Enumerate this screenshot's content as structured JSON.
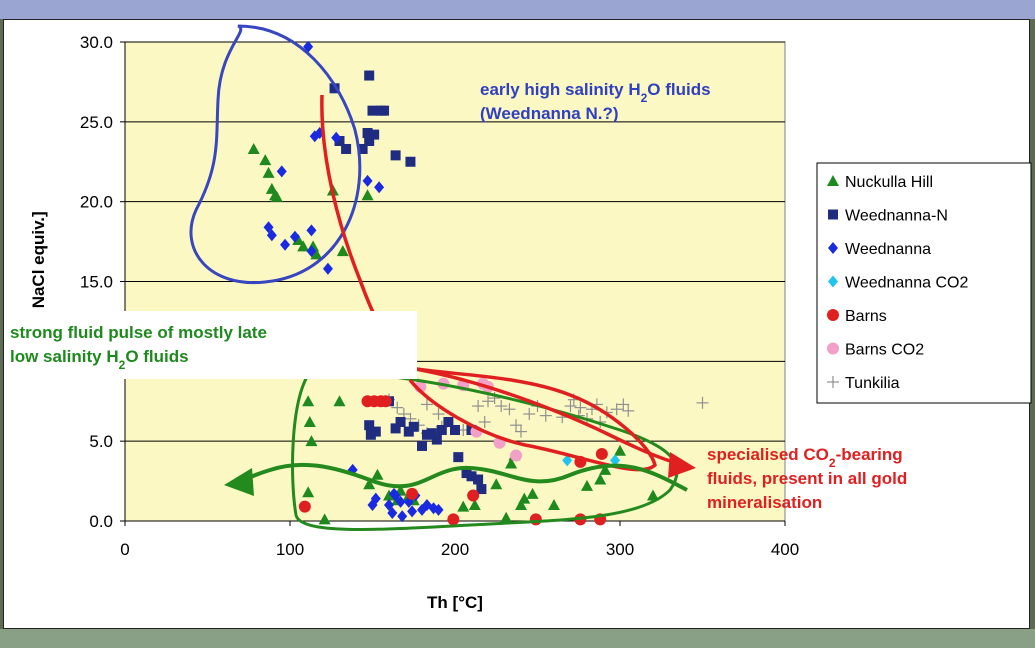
{
  "chart_data": {
    "type": "scatter",
    "title": "",
    "xlabel": "Th [°C]",
    "ylabel": "[wt% NaCl equiv.]",
    "xlim": [
      0,
      400
    ],
    "ylim": [
      0,
      30
    ],
    "xticks": [
      "0",
      "100",
      "200",
      "300",
      "400"
    ],
    "yticks": [
      "0.0",
      "5.0",
      "10.0",
      "15.0",
      "20.0",
      "25.0",
      "30.0"
    ],
    "grid": "horizontal",
    "legend_position": "right",
    "series": [
      {
        "name": "Nuckulla Hill",
        "marker": "triangle",
        "color": "#1e8a1e",
        "points": [
          [
            78,
            23.3
          ],
          [
            85,
            22.6
          ],
          [
            87,
            21.8
          ],
          [
            89,
            20.8
          ],
          [
            91,
            20.4
          ],
          [
            92,
            20.3
          ],
          [
            105,
            17.6
          ],
          [
            108,
            17.2
          ],
          [
            114,
            17.2
          ],
          [
            116,
            16.7
          ],
          [
            132,
            16.9
          ],
          [
            126,
            20.7
          ],
          [
            147,
            20.4
          ],
          [
            111,
            7.5
          ],
          [
            112,
            6.2
          ],
          [
            113,
            5.0
          ],
          [
            111,
            1.8
          ],
          [
            121,
            0.1
          ],
          [
            130,
            7.5
          ],
          [
            148,
            2.3
          ],
          [
            153,
            2.9
          ],
          [
            160,
            1.6
          ],
          [
            165,
            1.3
          ],
          [
            167,
            1.9
          ],
          [
            172,
            1.6
          ],
          [
            175,
            1.3
          ],
          [
            205,
            0.9
          ],
          [
            212,
            1.0
          ],
          [
            225,
            2.3
          ],
          [
            234,
            3.6
          ],
          [
            236,
            4.1
          ],
          [
            231,
            0.2
          ],
          [
            240,
            1.0
          ],
          [
            242,
            1.4
          ],
          [
            247,
            1.7
          ],
          [
            260,
            1.0
          ],
          [
            280,
            2.2
          ],
          [
            288,
            2.6
          ],
          [
            291,
            3.2
          ],
          [
            300,
            4.4
          ],
          [
            320,
            1.6
          ]
        ]
      },
      {
        "name": "Weednanna-N",
        "marker": "square",
        "color": "#1f2c80",
        "points": [
          [
            127,
            27.1
          ],
          [
            148,
            27.9
          ],
          [
            150,
            25.7
          ],
          [
            155,
            25.7
          ],
          [
            157,
            25.7
          ],
          [
            164,
            22.9
          ],
          [
            173,
            22.5
          ],
          [
            147,
            24.3
          ],
          [
            151,
            24.2
          ],
          [
            148,
            23.8
          ],
          [
            130,
            23.8
          ],
          [
            134,
            23.3
          ],
          [
            144,
            23.3
          ],
          [
            148,
            6.0
          ],
          [
            149,
            5.4
          ],
          [
            152,
            5.6
          ],
          [
            160,
            7.5
          ],
          [
            164,
            5.8
          ],
          [
            167,
            6.2
          ],
          [
            172,
            5.6
          ],
          [
            175,
            5.9
          ],
          [
            180,
            4.7
          ],
          [
            183,
            5.4
          ],
          [
            186,
            5.5
          ],
          [
            189,
            5.1
          ],
          [
            192,
            5.7
          ],
          [
            196,
            6.2
          ],
          [
            200,
            5.7
          ],
          [
            210,
            5.7
          ],
          [
            202,
            4.0
          ],
          [
            207,
            3.0
          ],
          [
            210,
            2.8
          ],
          [
            214,
            2.6
          ],
          [
            216,
            2.0
          ]
        ]
      },
      {
        "name": "Weednanna",
        "marker": "diamond",
        "color": "#1a2ae0",
        "points": [
          [
            111,
            29.7
          ],
          [
            115,
            24.1
          ],
          [
            118,
            24.3
          ],
          [
            128,
            24.0
          ],
          [
            147,
            21.3
          ],
          [
            154,
            20.9
          ],
          [
            95,
            21.9
          ],
          [
            87,
            18.4
          ],
          [
            89,
            17.9
          ],
          [
            97,
            17.3
          ],
          [
            103,
            17.8
          ],
          [
            113,
            18.2
          ],
          [
            113,
            16.9
          ],
          [
            123,
            15.8
          ],
          [
            138,
            3.2
          ],
          [
            150,
            1.0
          ],
          [
            152,
            1.4
          ],
          [
            160,
            1.0
          ],
          [
            162,
            0.5
          ],
          [
            163,
            1.7
          ],
          [
            164,
            1.6
          ],
          [
            167,
            1.2
          ],
          [
            168,
            0.3
          ],
          [
            172,
            1.2
          ],
          [
            174,
            0.6
          ],
          [
            176,
            1.6
          ],
          [
            180,
            0.7
          ],
          [
            183,
            1.0
          ],
          [
            187,
            0.8
          ],
          [
            190,
            0.7
          ]
        ]
      },
      {
        "name": "Weednanna CO2",
        "marker": "diamond",
        "color": "#20c4f0",
        "points": [
          [
            268,
            3.8
          ],
          [
            297,
            3.8
          ]
        ]
      },
      {
        "name": "Barns",
        "marker": "circle",
        "color": "#e02020",
        "points": [
          [
            109,
            0.9
          ],
          [
            147,
            7.5
          ],
          [
            151,
            7.5
          ],
          [
            155,
            7.5
          ],
          [
            158,
            7.5
          ],
          [
            174,
            1.7
          ],
          [
            199,
            0.1
          ],
          [
            211,
            1.6
          ],
          [
            249,
            0.1
          ],
          [
            276,
            0.1
          ],
          [
            288,
            0.1
          ],
          [
            276,
            3.7
          ],
          [
            289,
            4.2
          ]
        ]
      },
      {
        "name": "Barns CO2",
        "marker": "circle",
        "color": "#f2a0c8",
        "points": [
          [
            179,
            8.4
          ],
          [
            193,
            8.6
          ],
          [
            205,
            8.5
          ],
          [
            213,
            5.6
          ],
          [
            217,
            8.6
          ],
          [
            220,
            8.4
          ],
          [
            227,
            4.9
          ],
          [
            237,
            4.1
          ]
        ]
      },
      {
        "name": "Tunkilia",
        "marker": "plus",
        "color": "#909090",
        "points": [
          [
            160,
            7.6
          ],
          [
            165,
            7.1
          ],
          [
            169,
            6.7
          ],
          [
            173,
            6.4
          ],
          [
            178,
            6.0
          ],
          [
            183,
            5.5
          ],
          [
            183,
            7.3
          ],
          [
            190,
            6.7
          ],
          [
            192,
            5.9
          ],
          [
            205,
            5.7
          ],
          [
            214,
            7.2
          ],
          [
            218,
            6.2
          ],
          [
            220,
            7.5
          ],
          [
            224,
            7.7
          ],
          [
            228,
            7.2
          ],
          [
            233,
            7.0
          ],
          [
            237,
            6.0
          ],
          [
            240,
            5.6
          ],
          [
            245,
            6.7
          ],
          [
            250,
            7.2
          ],
          [
            255,
            6.6
          ],
          [
            265,
            6.5
          ],
          [
            270,
            7.2
          ],
          [
            272,
            7.6
          ],
          [
            275,
            6.6
          ],
          [
            276,
            7.1
          ],
          [
            280,
            6.4
          ],
          [
            283,
            7.0
          ],
          [
            286,
            7.3
          ],
          [
            288,
            6.2
          ],
          [
            292,
            6.8
          ],
          [
            298,
            7.0
          ],
          [
            302,
            7.3
          ],
          [
            305,
            6.9
          ],
          [
            350,
            7.4
          ]
        ]
      }
    ],
    "annotations": [
      {
        "id": "early",
        "lines": [
          "early high salinity H|2|O fluids",
          "(Weednanna N.?)"
        ],
        "color": "#3040c0"
      },
      {
        "id": "pulse",
        "lines": [
          "strong fluid pulse of mostly late",
          "low salinity H|2|O fluids"
        ],
        "color": "#1e8a1e"
      },
      {
        "id": "co2",
        "lines": [
          "specialised CO|2|-bearing",
          "fluids, present in all gold",
          "mineralisation"
        ],
        "color": "#e02020"
      }
    ],
    "colors": {
      "plot_bg": "#fbf8c4",
      "blue_outline": "#3846c0",
      "green_outline": "#248a1e",
      "red_arrow": "#e02020"
    }
  }
}
